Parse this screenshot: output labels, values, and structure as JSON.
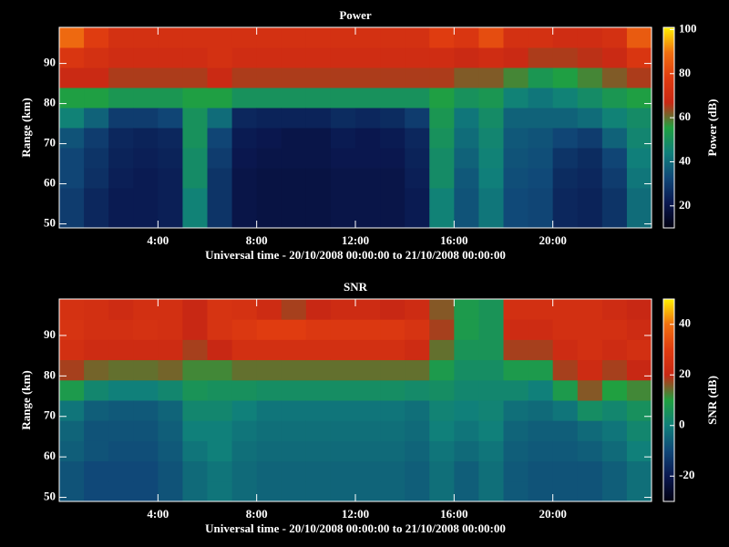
{
  "chart_data": [
    {
      "type": "heatmap",
      "title": "Power",
      "xlabel": "Universal time - 20/10/2008 00:00:00 to 21/10/2008 00:00:00",
      "ylabel": "Range (km)",
      "zlabel": "Power (dB)",
      "x_bins": [
        0,
        1,
        2,
        3,
        4,
        5,
        6,
        7,
        8,
        9,
        10,
        11,
        12,
        13,
        14,
        15,
        16,
        17,
        18,
        19,
        20,
        21,
        22,
        23,
        24
      ],
      "y_bins": [
        49,
        54,
        59,
        64,
        69,
        74,
        79,
        84,
        89,
        94,
        99
      ],
      "xlim": [
        0,
        24
      ],
      "ylim": [
        49,
        99
      ],
      "zlim": [
        10,
        101
      ],
      "xticks": [
        {
          "value": 4,
          "label": "4:00"
        },
        {
          "value": 8,
          "label": "8:00"
        },
        {
          "value": 12,
          "label": "12:00"
        },
        {
          "value": 16,
          "label": "16:00"
        },
        {
          "value": 20,
          "label": "20:00"
        }
      ],
      "yticks": [
        50,
        60,
        70,
        80,
        90
      ],
      "zticks": [
        20,
        40,
        60,
        80,
        100
      ],
      "colormap": [
        "#000010",
        "#0a1850",
        "#104878",
        "#10807a",
        "#20a040",
        "#c82814",
        "#e03c10",
        "#f07010",
        "#fff000"
      ],
      "z": [
        [
          30,
          30,
          32,
          32,
          35,
          45,
          55,
          68,
          75,
          88
        ],
        [
          25,
          25,
          27,
          28,
          30,
          38,
          55,
          68,
          72,
          78
        ],
        [
          22,
          22,
          23,
          24,
          25,
          30,
          52,
          65,
          70,
          72
        ],
        [
          22,
          22,
          22,
          23,
          24,
          30,
          52,
          65,
          70,
          72
        ],
        [
          23,
          23,
          23,
          24,
          25,
          32,
          52,
          65,
          70,
          72
        ],
        [
          45,
          45,
          48,
          48,
          50,
          50,
          55,
          65,
          70,
          72
        ],
        [
          28,
          28,
          28,
          30,
          32,
          40,
          55,
          68,
          72,
          72
        ],
        [
          20,
          20,
          20,
          21,
          22,
          25,
          50,
          65,
          70,
          72
        ],
        [
          19,
          19,
          19,
          20,
          21,
          24,
          50,
          65,
          70,
          72
        ],
        [
          19,
          19,
          19,
          20,
          20,
          24,
          50,
          65,
          70,
          72
        ],
        [
          19,
          19,
          19,
          20,
          20,
          24,
          50,
          65,
          70,
          72
        ],
        [
          20,
          20,
          20,
          21,
          22,
          26,
          50,
          65,
          70,
          72
        ],
        [
          20,
          20,
          20,
          21,
          21,
          25,
          50,
          65,
          70,
          72
        ],
        [
          20,
          20,
          20,
          21,
          22,
          26,
          50,
          65,
          70,
          72
        ],
        [
          22,
          22,
          23,
          24,
          25,
          30,
          50,
          65,
          70,
          72
        ],
        [
          45,
          45,
          48,
          48,
          50,
          52,
          55,
          65,
          70,
          78
        ],
        [
          35,
          35,
          36,
          38,
          40,
          42,
          50,
          62,
          68,
          75
        ],
        [
          42,
          42,
          44,
          45,
          46,
          48,
          52,
          62,
          70,
          82
        ],
        [
          33,
          33,
          34,
          35,
          36,
          38,
          45,
          58,
          68,
          72
        ],
        [
          32,
          32,
          33,
          34,
          35,
          38,
          42,
          52,
          65,
          72
        ],
        [
          25,
          25,
          26,
          28,
          32,
          38,
          45,
          55,
          65,
          70
        ],
        [
          24,
          24,
          25,
          26,
          30,
          40,
          48,
          58,
          66,
          70
        ],
        [
          28,
          28,
          30,
          32,
          38,
          45,
          52,
          62,
          68,
          72
        ],
        [
          40,
          40,
          42,
          44,
          46,
          48,
          55,
          65,
          75,
          85
        ]
      ]
    },
    {
      "type": "heatmap",
      "title": "SNR",
      "xlabel": "Universal time - 20/10/2008 00:00:00 to 21/10/2008 00:00:00",
      "ylabel": "Range (km)",
      "zlabel": "SNR (dB)",
      "x_bins": [
        0,
        1,
        2,
        3,
        4,
        5,
        6,
        7,
        8,
        9,
        10,
        11,
        12,
        13,
        14,
        15,
        16,
        17,
        18,
        19,
        20,
        21,
        22,
        23,
        24
      ],
      "y_bins": [
        49,
        54,
        59,
        64,
        69,
        74,
        79,
        84,
        89,
        94,
        99
      ],
      "xlim": [
        0,
        24
      ],
      "ylim": [
        49,
        99
      ],
      "zlim": [
        -30,
        50
      ],
      "xticks": [
        {
          "value": 4,
          "label": "4:00"
        },
        {
          "value": 8,
          "label": "8:00"
        },
        {
          "value": 12,
          "label": "12:00"
        },
        {
          "value": 16,
          "label": "16:00"
        },
        {
          "value": 20,
          "label": "20:00"
        }
      ],
      "yticks": [
        50,
        60,
        70,
        80,
        90
      ],
      "zticks": [
        -20,
        0,
        20,
        40
      ],
      "colormap": [
        "#000010",
        "#0a1850",
        "#104878",
        "#10807a",
        "#20a040",
        "#c82814",
        "#e03c10",
        "#f07010",
        "#fff000"
      ],
      "z": [
        [
          -8,
          -8,
          -6,
          -5,
          -2,
          8,
          18,
          24,
          26,
          25
        ],
        [
          -10,
          -10,
          -8,
          -8,
          -6,
          2,
          15,
          22,
          24,
          24
        ],
        [
          -10,
          -10,
          -9,
          -8,
          -7,
          0,
          14,
          22,
          24,
          22
        ],
        [
          -10,
          -10,
          -9,
          -8,
          -7,
          0,
          14,
          22,
          25,
          24
        ],
        [
          -8,
          -8,
          -7,
          -6,
          -5,
          2,
          15,
          22,
          24,
          24
        ],
        [
          -4,
          -4,
          -2,
          0,
          2,
          6,
          12,
          18,
          20,
          20
        ],
        [
          -2,
          -2,
          0,
          0,
          2,
          5,
          12,
          20,
          26,
          26
        ],
        [
          -4,
          -4,
          -3,
          -2,
          0,
          5,
          14,
          24,
          28,
          25
        ],
        [
          -5,
          -5,
          -4,
          -3,
          -2,
          4,
          14,
          24,
          30,
          22
        ],
        [
          -5,
          -5,
          -4,
          -3,
          -2,
          4,
          14,
          24,
          30,
          18
        ],
        [
          -5,
          -5,
          -4,
          -3,
          -2,
          4,
          14,
          24,
          28,
          20
        ],
        [
          -5,
          -5,
          -4,
          -3,
          -2,
          4,
          14,
          24,
          28,
          22
        ],
        [
          -5,
          -5,
          -4,
          -3,
          -2,
          4,
          14,
          24,
          28,
          22
        ],
        [
          -5,
          -5,
          -4,
          -3,
          -2,
          4,
          14,
          24,
          28,
          20
        ],
        [
          -6,
          -6,
          -5,
          -4,
          -3,
          3,
          14,
          22,
          26,
          22
        ],
        [
          -3,
          -3,
          -2,
          0,
          1,
          4,
          8,
          14,
          18,
          16
        ],
        [
          -6,
          -6,
          -4,
          -2,
          0,
          2,
          4,
          6,
          8,
          8
        ],
        [
          -3,
          -3,
          -2,
          0,
          1,
          2,
          4,
          6,
          6,
          6
        ],
        [
          -7,
          -7,
          -6,
          -5,
          -3,
          2,
          8,
          18,
          22,
          24
        ],
        [
          -8,
          -8,
          -7,
          -6,
          -4,
          0,
          8,
          18,
          22,
          24
        ],
        [
          -8,
          -8,
          -7,
          -6,
          -2,
          8,
          18,
          22,
          24,
          24
        ],
        [
          -8,
          -8,
          -6,
          -4,
          4,
          16,
          22,
          24,
          24,
          24
        ],
        [
          -6,
          -6,
          -4,
          -2,
          2,
          10,
          18,
          22,
          24,
          22
        ],
        [
          -3,
          -3,
          0,
          2,
          5,
          12,
          20,
          24,
          22,
          20
        ]
      ]
    }
  ]
}
